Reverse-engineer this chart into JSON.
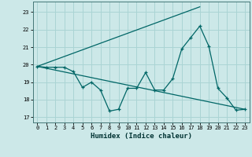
{
  "title": "",
  "xlabel": "Humidex (Indice chaleur)",
  "ylabel": "",
  "bg_color": "#cce8e8",
  "grid_color": "#aad4d4",
  "line_color": "#006666",
  "xlim": [
    -0.5,
    23.5
  ],
  "ylim": [
    16.7,
    23.6
  ],
  "yticks": [
    17,
    18,
    19,
    20,
    21,
    22,
    23
  ],
  "xticks": [
    0,
    1,
    2,
    3,
    4,
    5,
    6,
    7,
    8,
    9,
    10,
    11,
    12,
    13,
    14,
    15,
    16,
    17,
    18,
    19,
    20,
    21,
    22,
    23
  ],
  "line1_x": [
    0,
    1,
    2,
    3,
    4,
    5,
    6,
    7,
    8,
    9,
    10,
    11,
    12,
    13,
    14,
    15,
    16,
    17,
    18,
    19,
    20,
    21,
    22,
    23
  ],
  "line1_y": [
    19.9,
    19.85,
    19.85,
    19.85,
    19.6,
    18.7,
    19.0,
    18.55,
    17.35,
    17.45,
    18.65,
    18.65,
    19.55,
    18.55,
    18.55,
    19.2,
    20.9,
    21.55,
    22.2,
    21.05,
    18.65,
    18.1,
    17.4,
    17.45
  ],
  "line2_x": [
    0,
    23
  ],
  "line2_y": [
    19.9,
    17.45
  ],
  "line3_x": [
    0,
    18
  ],
  "line3_y": [
    19.9,
    23.3
  ]
}
